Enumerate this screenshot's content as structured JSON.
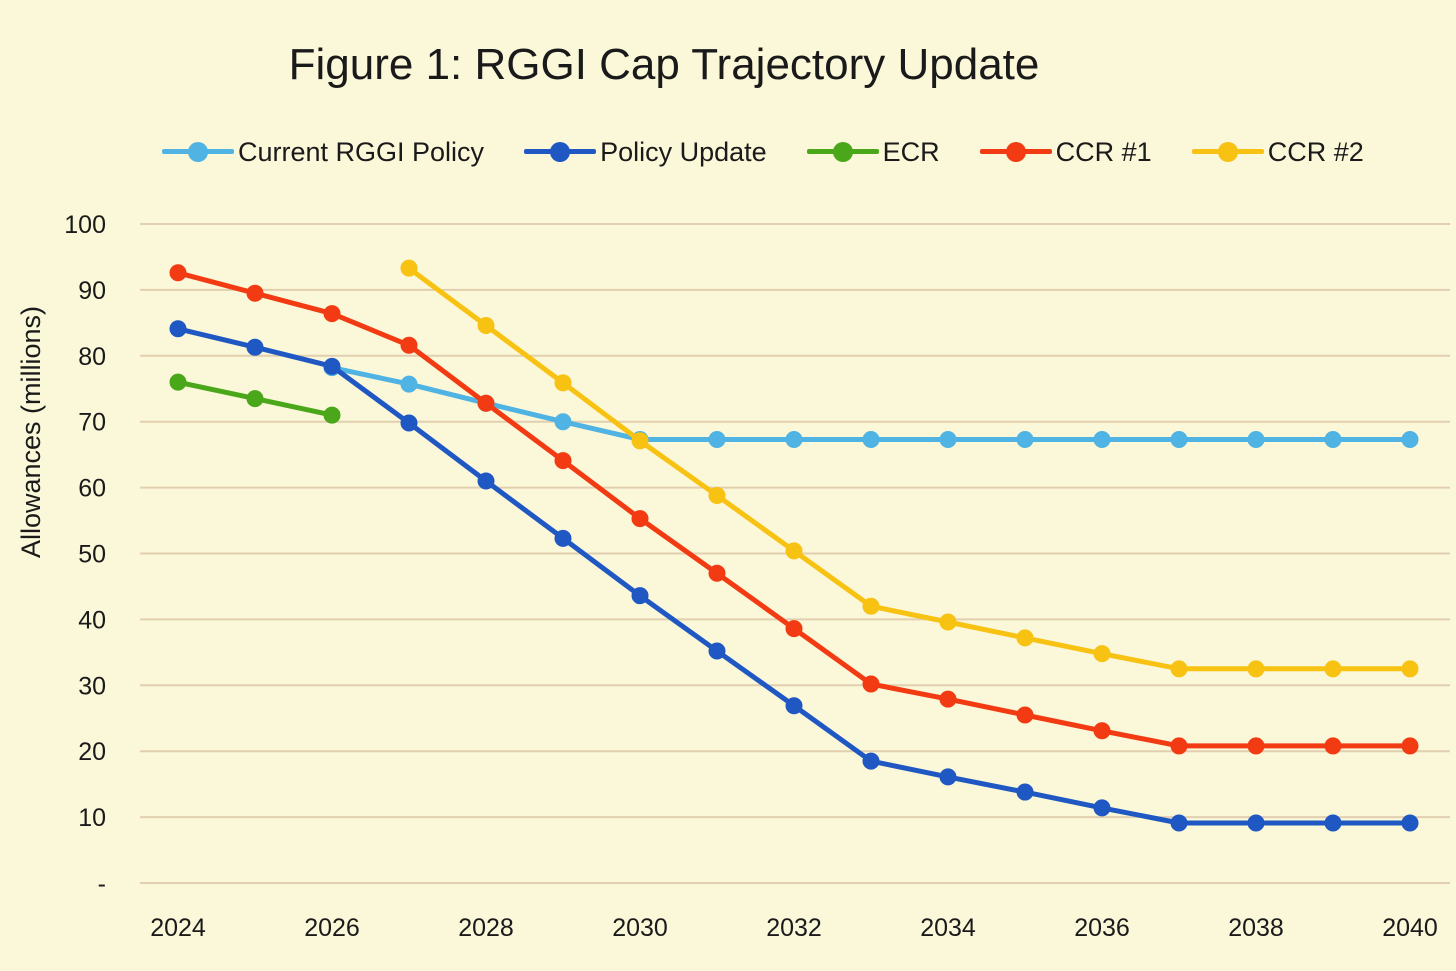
{
  "chart_data": {
    "type": "line",
    "title": "Figure 1: RGGI Cap Trajectory Update",
    "ylabel": "Allowances (millions)",
    "xlabel": "",
    "ylim": [
      0,
      100
    ],
    "y_ticks": [
      {
        "value": 0,
        "label": "-"
      },
      {
        "value": 10,
        "label": "10"
      },
      {
        "value": 20,
        "label": "20"
      },
      {
        "value": 30,
        "label": "30"
      },
      {
        "value": 40,
        "label": "40"
      },
      {
        "value": 50,
        "label": "50"
      },
      {
        "value": 60,
        "label": "60"
      },
      {
        "value": 70,
        "label": "70"
      },
      {
        "value": 80,
        "label": "80"
      },
      {
        "value": 90,
        "label": "90"
      },
      {
        "value": 100,
        "label": "100"
      }
    ],
    "x_ticks": [
      "2024",
      "2026",
      "2028",
      "2030",
      "2032",
      "2034",
      "2036",
      "2038",
      "2040"
    ],
    "grid": true,
    "legend_position": "top",
    "x": [
      2024,
      2025,
      2026,
      2027,
      2028,
      2029,
      2030,
      2031,
      2032,
      2033,
      2034,
      2035,
      2036,
      2037,
      2038,
      2039,
      2040
    ],
    "series": [
      {
        "name": "Current RGGI Policy",
        "color": "#4fb3e3",
        "values": [
          null,
          null,
          78.2,
          75.7,
          72.8,
          70.0,
          67.3,
          67.3,
          67.3,
          67.3,
          67.3,
          67.3,
          67.3,
          67.3,
          67.3,
          67.3,
          67.3
        ]
      },
      {
        "name": "Policy Update",
        "color": "#1f57c3",
        "values": [
          84.1,
          81.3,
          78.4,
          69.8,
          61.0,
          52.3,
          43.6,
          35.2,
          26.9,
          18.5,
          16.1,
          13.8,
          11.4,
          9.1,
          9.1,
          9.1,
          9.1
        ]
      },
      {
        "name": "ECR",
        "color": "#4aa71a",
        "values": [
          76.0,
          73.5,
          71.0,
          null,
          null,
          null,
          null,
          null,
          null,
          null,
          null,
          null,
          null,
          null,
          null,
          null,
          null
        ]
      },
      {
        "name": "CCR #1",
        "color": "#f23b12",
        "values": [
          92.6,
          89.5,
          86.4,
          81.6,
          72.8,
          64.1,
          55.3,
          47.0,
          38.6,
          30.2,
          27.9,
          25.5,
          23.1,
          20.8,
          20.8,
          20.8,
          20.8
        ]
      },
      {
        "name": "CCR #2",
        "color": "#f8c213",
        "values": [
          null,
          null,
          null,
          93.3,
          84.6,
          75.9,
          67.1,
          58.8,
          50.4,
          42.0,
          39.6,
          37.2,
          34.8,
          32.5,
          32.5,
          32.5,
          32.5
        ]
      }
    ]
  }
}
